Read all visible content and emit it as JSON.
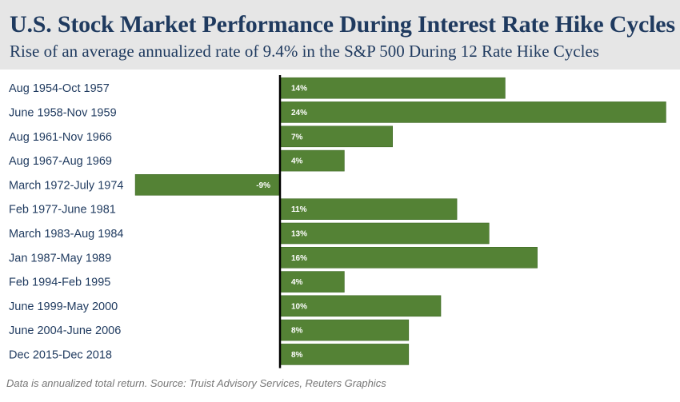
{
  "header": {
    "title": "U.S. Stock Market Performance During Interest Rate Hike Cycles",
    "subtitle": "Rise of an average annualized rate of 9.4% in the S&P 500 During 12 Rate Hike Cycles"
  },
  "footer": {
    "source": "Data is annualized total return. Source: Truist Advisory Services, Reuters Graphics"
  },
  "colors": {
    "bar": "#548235",
    "axis": "#000000",
    "title": "#1f3a5f",
    "header_bg": "#e6e6e6"
  },
  "chart_data": {
    "type": "bar",
    "orientation": "horizontal",
    "title": "U.S. Stock Market Performance During Interest Rate Hike Cycles",
    "subtitle": "Rise of an average annualized rate of 9.4% in the S&P 500 During 12 Rate Hike Cycles",
    "xlabel": "",
    "ylabel": "",
    "categories": [
      "Aug 1954-Oct 1957",
      "June 1958-Nov 1959",
      "Aug 1961-Nov 1966",
      "Aug 1967-Aug 1969",
      "March 1972-July 1974",
      "Feb 1977-June 1981",
      "March 1983-Aug 1984",
      "Jan 1987-May 1989",
      "Feb 1994-Feb 1995",
      "June 1999-May 2000",
      "June 2004-June 2006",
      "Dec 2015-Dec 2018"
    ],
    "values": [
      14,
      24,
      7,
      4,
      -9,
      11,
      13,
      16,
      4,
      10,
      8,
      8
    ],
    "data_labels": [
      "14%",
      "24%",
      "7%",
      "4%",
      "-9%",
      "11%",
      "13%",
      "16%",
      "4%",
      "10%",
      "8%",
      "8%"
    ],
    "xlim": [
      -9,
      24
    ],
    "grid": false,
    "legend": "none"
  }
}
